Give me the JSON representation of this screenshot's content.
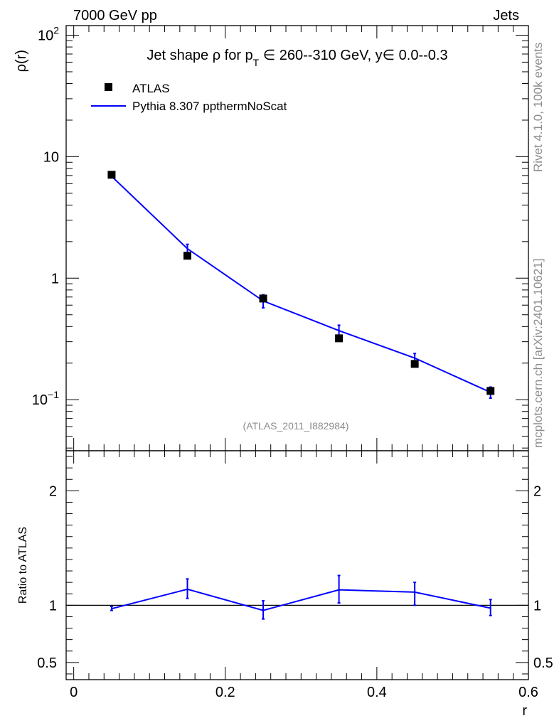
{
  "header": {
    "left": "7000 GeV pp",
    "right": "Jets"
  },
  "side_labels": {
    "rivet": "Rivet 4.1.0,  100k events",
    "mcplots": "mcplots.cern.ch [arXiv:2401.10621]"
  },
  "chart_data": {
    "type": "line",
    "title_parts": {
      "prefix": "Jet shape ",
      "rho": "ρ",
      "for": " for p",
      "sub": "T",
      "rest": " ∈ 260--310 GeV, y∈ 0.0--0.3"
    },
    "analysis_label": "(ATLAS_2011_I882984)",
    "x": [
      0.05,
      0.15,
      0.25,
      0.35,
      0.45,
      0.55
    ],
    "xlim": [
      -0.01,
      0.6
    ],
    "xlabel": "r",
    "xticks": [
      0,
      0.2,
      0.4,
      0.6
    ],
    "xtick_labels": [
      "0",
      "0.2",
      "0.4",
      "0.6"
    ],
    "main": {
      "ylabel": "ρ(r)",
      "yscale": "log",
      "ylim": [
        0.038,
        120
      ],
      "ytick_labels": [
        {
          "v": 100,
          "base": "10",
          "exp": "2"
        },
        {
          "v": 10,
          "base": "10",
          "exp": ""
        },
        {
          "v": 1,
          "base": "1",
          "exp": ""
        },
        {
          "v": 0.1,
          "base": "10",
          "exp": "−1"
        }
      ],
      "series": [
        {
          "name": "ATLAS",
          "style": "markers",
          "color": "#000000",
          "values": [
            7.1,
            1.53,
            0.68,
            0.32,
            0.197,
            0.118
          ]
        },
        {
          "name": "Pythia 8.307 ppthermNoScat",
          "style": "line",
          "color": "#0000ff",
          "values": [
            6.9,
            1.75,
            0.65,
            0.37,
            0.22,
            0.115
          ],
          "err_low": [
            6.7,
            1.6,
            0.57,
            0.33,
            0.2,
            0.103
          ],
          "err_high": [
            7.1,
            1.9,
            0.73,
            0.41,
            0.24,
            0.127
          ]
        }
      ]
    },
    "ratio": {
      "ylabel": "Ratio to ATLAS",
      "ylim": [
        0.35,
        2.35
      ],
      "yticks": [
        0.5,
        1,
        2
      ],
      "ytick_labels": [
        "0.5",
        "1",
        "2"
      ],
      "reference": 1,
      "series": [
        {
          "name": "Pythia 8.307 ppthermNoScat / ATLAS",
          "color": "#0000ff",
          "values": [
            0.97,
            1.14,
            0.955,
            1.135,
            1.115,
            0.975
          ],
          "err_low": [
            0.955,
            1.06,
            0.88,
            1.02,
            1.0,
            0.91
          ],
          "err_high": [
            0.99,
            1.23,
            1.04,
            1.26,
            1.2,
            1.05
          ]
        }
      ]
    }
  }
}
